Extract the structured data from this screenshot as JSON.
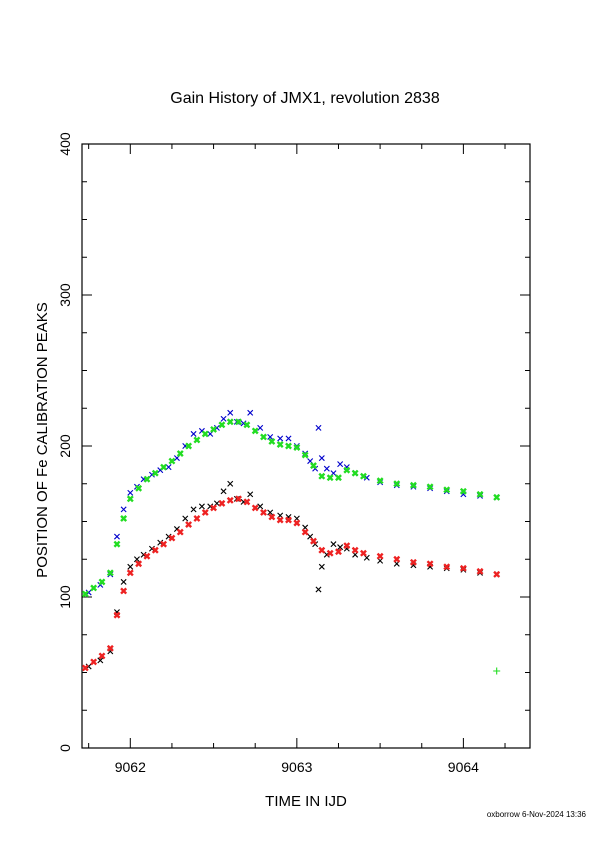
{
  "chart_data": {
    "type": "scatter",
    "title": "Gain History of JMX1, revolution 2838",
    "xlabel": "TIME IN IJD",
    "ylabel": "POSITION OF Fe CALIBRATION PEAKS",
    "xlim": [
      9061.71,
      9064.4
    ],
    "ylim": [
      0,
      400
    ],
    "x_ticks": [
      9062,
      9063,
      9064
    ],
    "x_tick_labels": [
      "9062",
      "9063",
      "9064"
    ],
    "y_ticks": [
      0,
      100,
      200,
      300,
      400
    ],
    "y_tick_labels": [
      "0",
      "100",
      "200",
      "300",
      "400"
    ],
    "grid": false,
    "series": [
      {
        "color": "#0000cc",
        "marker": "x",
        "x": [
          9061.75,
          9061.82,
          9061.88,
          9061.92,
          9061.96,
          9062.0,
          9062.04,
          9062.08,
          9062.13,
          9062.18,
          9062.23,
          9062.28,
          9062.33,
          9062.38,
          9062.43,
          9062.48,
          9062.52,
          9062.56,
          9062.6,
          9062.64,
          9062.68,
          9062.72,
          9062.78,
          9062.84,
          9062.9,
          9062.95,
          9063.0,
          9063.05,
          9063.08,
          9063.11,
          9063.13,
          9063.15,
          9063.18,
          9063.22,
          9063.26,
          9063.3,
          9063.35,
          9063.42,
          9063.5,
          9063.6,
          9063.7,
          9063.8,
          9063.9,
          9064.0,
          9064.1,
          9064.2
        ],
        "y": [
          103,
          108,
          115,
          140,
          158,
          169,
          173,
          178,
          181,
          184,
          186,
          192,
          200,
          208,
          210,
          208,
          212,
          218,
          222,
          216,
          215,
          222,
          212,
          206,
          205,
          205,
          200,
          195,
          190,
          185,
          212,
          192,
          185,
          182,
          188,
          186,
          182,
          179,
          176,
          174,
          173,
          172,
          170,
          168,
          167,
          166
        ]
      },
      {
        "color": "#22dd22",
        "marker": "x",
        "x": [
          9061.73,
          9061.78,
          9061.83,
          9061.88,
          9061.92,
          9061.96,
          9062.0,
          9062.05,
          9062.1,
          9062.15,
          9062.2,
          9062.25,
          9062.3,
          9062.35,
          9062.4,
          9062.45,
          9062.5,
          9062.55,
          9062.6,
          9062.65,
          9062.7,
          9062.75,
          9062.8,
          9062.85,
          9062.9,
          9062.95,
          9063.0,
          9063.05,
          9063.1,
          9063.15,
          9063.2,
          9063.25,
          9063.3,
          9063.35,
          9063.4,
          9063.5,
          9063.6,
          9063.7,
          9063.8,
          9063.9,
          9064.0,
          9064.1,
          9064.2
        ],
        "y": [
          102,
          106,
          110,
          116,
          135,
          152,
          165,
          172,
          178,
          182,
          186,
          190,
          195,
          200,
          204,
          208,
          211,
          214,
          216,
          216,
          214,
          210,
          206,
          203,
          201,
          200,
          199,
          194,
          187,
          180,
          179,
          179,
          184,
          182,
          180,
          177,
          175,
          174,
          173,
          171,
          170,
          168,
          166
        ]
      },
      {
        "color": "#000000",
        "marker": "x",
        "x": [
          9061.75,
          9061.82,
          9061.88,
          9061.92,
          9061.96,
          9062.0,
          9062.04,
          9062.08,
          9062.13,
          9062.18,
          9062.23,
          9062.28,
          9062.33,
          9062.38,
          9062.43,
          9062.48,
          9062.52,
          9062.56,
          9062.6,
          9062.64,
          9062.68,
          9062.72,
          9062.78,
          9062.84,
          9062.9,
          9062.95,
          9063.0,
          9063.05,
          9063.08,
          9063.11,
          9063.13,
          9063.15,
          9063.18,
          9063.22,
          9063.26,
          9063.3,
          9063.35,
          9063.42,
          9063.5,
          9063.6,
          9063.7,
          9063.8,
          9063.9,
          9064.0,
          9064.1,
          9064.2
        ],
        "y": [
          54,
          58,
          64,
          90,
          110,
          120,
          125,
          128,
          132,
          136,
          140,
          145,
          152,
          158,
          160,
          160,
          162,
          170,
          175,
          165,
          163,
          168,
          160,
          156,
          154,
          153,
          152,
          146,
          140,
          135,
          105,
          120,
          128,
          135,
          133,
          132,
          128,
          126,
          124,
          122,
          121,
          120,
          119,
          118,
          116,
          115
        ]
      },
      {
        "color": "#ee2222",
        "marker": "x",
        "x": [
          9061.73,
          9061.78,
          9061.83,
          9061.88,
          9061.92,
          9061.96,
          9062.0,
          9062.05,
          9062.1,
          9062.15,
          9062.2,
          9062.25,
          9062.3,
          9062.35,
          9062.4,
          9062.45,
          9062.5,
          9062.55,
          9062.6,
          9062.65,
          9062.7,
          9062.75,
          9062.8,
          9062.85,
          9062.9,
          9062.95,
          9063.0,
          9063.05,
          9063.1,
          9063.15,
          9063.2,
          9063.25,
          9063.3,
          9063.35,
          9063.4,
          9063.5,
          9063.6,
          9063.7,
          9063.8,
          9063.9,
          9064.0,
          9064.1,
          9064.2
        ],
        "y": [
          53,
          57,
          61,
          66,
          88,
          104,
          116,
          122,
          127,
          131,
          135,
          139,
          143,
          148,
          152,
          156,
          159,
          162,
          164,
          165,
          163,
          159,
          156,
          153,
          151,
          151,
          149,
          143,
          137,
          131,
          129,
          130,
          134,
          131,
          129,
          127,
          125,
          123,
          122,
          120,
          119,
          117,
          115
        ]
      },
      {
        "color": "#22dd22",
        "marker": "+",
        "x": [
          9064.2
        ],
        "y": [
          51
        ]
      }
    ],
    "footer": "oxborrow  6-Nov-2024 13:36"
  }
}
